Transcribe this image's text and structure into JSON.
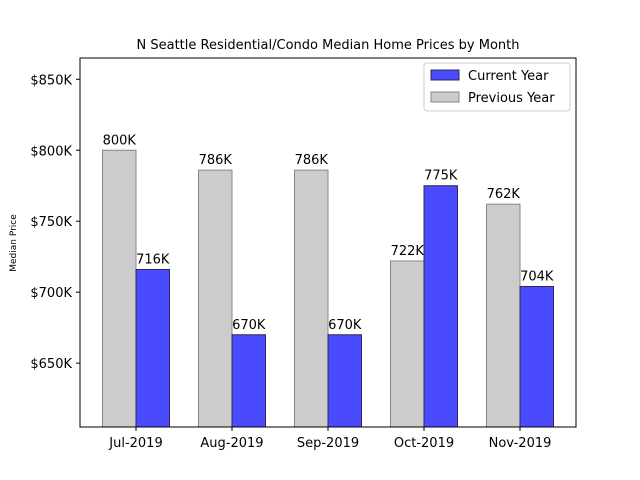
{
  "chart_data": {
    "type": "bar",
    "title": "N Seattle Residential/Condo Median Home Prices by Month",
    "xlabel": "",
    "ylabel": "Median Price",
    "categories": [
      "Jul-2019",
      "Aug-2019",
      "Sep-2019",
      "Oct-2019",
      "Nov-2019"
    ],
    "series": [
      {
        "name": "Previous Year",
        "values": [
          800,
          786,
          786,
          722,
          762
        ],
        "labels": [
          "800K",
          "786K",
          "786K",
          "722K",
          "762K"
        ],
        "color": "#cccccc",
        "edge_color": "#888888"
      },
      {
        "name": "Current Year",
        "values": [
          716,
          670,
          670,
          775,
          704
        ],
        "labels": [
          "716K",
          "670K",
          "670K",
          "775K",
          "704K"
        ],
        "color": "#4a4aff",
        "edge_color": "#2a2a5a"
      }
    ],
    "ylim": [
      605,
      865
    ],
    "yticks": [
      650,
      700,
      750,
      800,
      850
    ],
    "ytick_labels": [
      "$650K",
      "$700K",
      "$750K",
      "$800K",
      "$850K"
    ],
    "legend": {
      "location": "top-right",
      "entries": [
        "Current Year",
        "Previous Year"
      ]
    },
    "grid": false
  }
}
